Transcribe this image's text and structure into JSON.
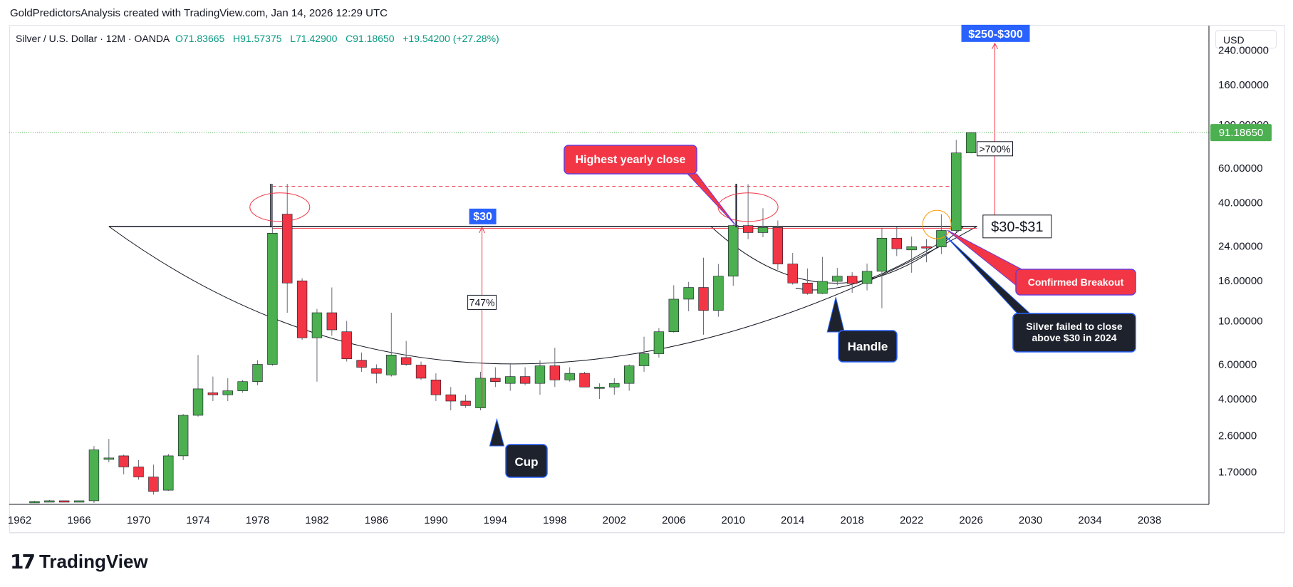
{
  "header": {
    "credit": "GoldPredictorsAnalysis created with TradingView.com, Jan 14, 2026 12:29 UTC"
  },
  "legend": {
    "symbol": "Silver / U.S. Dollar · 12M · OANDA",
    "open": "O71.83665",
    "high": "H91.57375",
    "low": "L71.42900",
    "close": "C91.18650",
    "change": "+19.54200 (+27.28%)"
  },
  "currency": "USD",
  "brand": {
    "mark": "17",
    "name": "TradingView"
  },
  "colors": {
    "up": "#4caf50",
    "down": "#f23645",
    "annotation_red": "#f23645",
    "annotation_dark": "#1e222d",
    "annotation_blue": "#2962ff"
  },
  "chart_data": {
    "type": "candlestick",
    "scale": "log",
    "ylim": [
      1.16,
      320
    ],
    "xlim": [
      1961.3,
      2042
    ],
    "y_ticks": [
      {
        "value": 240,
        "label": "240.00000"
      },
      {
        "value": 160,
        "label": "160.00000"
      },
      {
        "value": 100,
        "label": "100.00000"
      },
      {
        "value": 60,
        "label": "60.00000"
      },
      {
        "value": 40,
        "label": "40.00000"
      },
      {
        "value": 24,
        "label": "24.00000"
      },
      {
        "value": 16,
        "label": "16.00000"
      },
      {
        "value": 10,
        "label": "10.00000"
      },
      {
        "value": 6,
        "label": "6.00000"
      },
      {
        "value": 4,
        "label": "4.00000"
      },
      {
        "value": 2.6,
        "label": "2.60000"
      },
      {
        "value": 1.7,
        "label": "1.70000"
      }
    ],
    "x_ticks": [
      "1962",
      "1966",
      "1970",
      "1974",
      "1978",
      "1982",
      "1986",
      "1990",
      "1994",
      "1998",
      "2002",
      "2006",
      "2010",
      "2014",
      "2018",
      "2022",
      "2026",
      "2030",
      "2034",
      "2038"
    ],
    "last_price": {
      "value": 91.1865,
      "label": "91.18650"
    },
    "candles": [
      {
        "t": 1963,
        "o": 1.2,
        "h": 1.21,
        "l": 1.19,
        "c": 1.2
      },
      {
        "t": 1964,
        "o": 1.2,
        "h": 1.22,
        "l": 1.19,
        "c": 1.21
      },
      {
        "t": 1965,
        "o": 1.21,
        "h": 1.21,
        "l": 1.19,
        "c": 1.2
      },
      {
        "t": 1966,
        "o": 1.2,
        "h": 1.21,
        "l": 1.19,
        "c": 1.21
      },
      {
        "t": 1967,
        "o": 1.21,
        "h": 2.3,
        "l": 1.18,
        "c": 2.2
      },
      {
        "t": 1968,
        "o": 2.0,
        "h": 2.5,
        "l": 1.9,
        "c": 2.0
      },
      {
        "t": 1969,
        "o": 2.05,
        "h": 2.08,
        "l": 1.65,
        "c": 1.8
      },
      {
        "t": 1970,
        "o": 1.8,
        "h": 1.95,
        "l": 1.55,
        "c": 1.6
      },
      {
        "t": 1971,
        "o": 1.6,
        "h": 1.85,
        "l": 1.3,
        "c": 1.35
      },
      {
        "t": 1972,
        "o": 1.37,
        "h": 2.1,
        "l": 1.36,
        "c": 2.05
      },
      {
        "t": 1973,
        "o": 2.05,
        "h": 3.35,
        "l": 1.95,
        "c": 3.3
      },
      {
        "t": 1974,
        "o": 3.3,
        "h": 6.7,
        "l": 3.25,
        "c": 4.5
      },
      {
        "t": 1975,
        "o": 4.3,
        "h": 5.2,
        "l": 3.9,
        "c": 4.2
      },
      {
        "t": 1976,
        "o": 4.2,
        "h": 5.1,
        "l": 3.9,
        "c": 4.4
      },
      {
        "t": 1977,
        "o": 4.4,
        "h": 5.0,
        "l": 4.3,
        "c": 4.9
      },
      {
        "t": 1978,
        "o": 4.9,
        "h": 6.3,
        "l": 4.7,
        "c": 6.0
      },
      {
        "t": 1979,
        "o": 6.0,
        "h": 50.0,
        "l": 5.9,
        "c": 28.0
      },
      {
        "t": 1980,
        "o": 35.0,
        "h": 50.0,
        "l": 11.0,
        "c": 15.6
      },
      {
        "t": 1981,
        "o": 16.0,
        "h": 16.5,
        "l": 8.0,
        "c": 8.2
      },
      {
        "t": 1982,
        "o": 8.2,
        "h": 11.5,
        "l": 4.9,
        "c": 11.0
      },
      {
        "t": 1983,
        "o": 11.0,
        "h": 14.8,
        "l": 8.4,
        "c": 9.0
      },
      {
        "t": 1984,
        "o": 8.8,
        "h": 10.0,
        "l": 6.2,
        "c": 6.4
      },
      {
        "t": 1985,
        "o": 6.3,
        "h": 6.9,
        "l": 5.5,
        "c": 5.8
      },
      {
        "t": 1986,
        "o": 5.7,
        "h": 6.0,
        "l": 4.8,
        "c": 5.4
      },
      {
        "t": 1987,
        "o": 5.3,
        "h": 11.0,
        "l": 5.2,
        "c": 6.7
      },
      {
        "t": 1988,
        "o": 6.5,
        "h": 7.9,
        "l": 5.9,
        "c": 6.0
      },
      {
        "t": 1989,
        "o": 5.95,
        "h": 6.2,
        "l": 5.0,
        "c": 5.1
      },
      {
        "t": 1990,
        "o": 5.0,
        "h": 5.4,
        "l": 3.9,
        "c": 4.2
      },
      {
        "t": 1991,
        "o": 4.2,
        "h": 4.6,
        "l": 3.5,
        "c": 3.9
      },
      {
        "t": 1992,
        "o": 3.9,
        "h": 4.2,
        "l": 3.6,
        "c": 3.7
      },
      {
        "t": 1993,
        "o": 3.6,
        "h": 5.5,
        "l": 3.5,
        "c": 5.1
      },
      {
        "t": 1994,
        "o": 5.1,
        "h": 5.8,
        "l": 4.6,
        "c": 4.9
      },
      {
        "t": 1995,
        "o": 4.8,
        "h": 6.1,
        "l": 4.4,
        "c": 5.2
      },
      {
        "t": 1996,
        "o": 5.2,
        "h": 5.8,
        "l": 4.7,
        "c": 4.8
      },
      {
        "t": 1997,
        "o": 4.8,
        "h": 6.3,
        "l": 4.2,
        "c": 5.9
      },
      {
        "t": 1998,
        "o": 5.9,
        "h": 7.3,
        "l": 4.6,
        "c": 5.0
      },
      {
        "t": 1999,
        "o": 5.0,
        "h": 5.8,
        "l": 4.9,
        "c": 5.4
      },
      {
        "t": 2000,
        "o": 5.4,
        "h": 5.5,
        "l": 4.6,
        "c": 4.6
      },
      {
        "t": 2001,
        "o": 4.6,
        "h": 4.8,
        "l": 4.0,
        "c": 4.6
      },
      {
        "t": 2002,
        "o": 4.6,
        "h": 5.1,
        "l": 4.2,
        "c": 4.8
      },
      {
        "t": 2003,
        "o": 4.8,
        "h": 6.0,
        "l": 4.4,
        "c": 5.9
      },
      {
        "t": 2004,
        "o": 5.9,
        "h": 8.3,
        "l": 5.5,
        "c": 6.8
      },
      {
        "t": 2005,
        "o": 6.8,
        "h": 9.2,
        "l": 6.5,
        "c": 8.8
      },
      {
        "t": 2006,
        "o": 8.8,
        "h": 15.2,
        "l": 8.7,
        "c": 12.9
      },
      {
        "t": 2007,
        "o": 12.9,
        "h": 15.8,
        "l": 11.2,
        "c": 14.8
      },
      {
        "t": 2008,
        "o": 14.8,
        "h": 21.0,
        "l": 8.5,
        "c": 11.3
      },
      {
        "t": 2009,
        "o": 11.3,
        "h": 19.5,
        "l": 10.5,
        "c": 16.9
      },
      {
        "t": 2010,
        "o": 16.9,
        "h": 31.0,
        "l": 15.1,
        "c": 30.6
      },
      {
        "t": 2011,
        "o": 30.6,
        "h": 49.8,
        "l": 26.1,
        "c": 28.2
      },
      {
        "t": 2012,
        "o": 28.2,
        "h": 37.5,
        "l": 26.7,
        "c": 29.9
      },
      {
        "t": 2013,
        "o": 29.9,
        "h": 32.5,
        "l": 18.2,
        "c": 19.5
      },
      {
        "t": 2014,
        "o": 19.5,
        "h": 22.2,
        "l": 15.3,
        "c": 15.6
      },
      {
        "t": 2015,
        "o": 15.6,
        "h": 18.5,
        "l": 13.6,
        "c": 13.8
      },
      {
        "t": 2016,
        "o": 13.8,
        "h": 21.2,
        "l": 13.7,
        "c": 15.9
      },
      {
        "t": 2017,
        "o": 15.9,
        "h": 18.6,
        "l": 15.2,
        "c": 16.9
      },
      {
        "t": 2018,
        "o": 16.9,
        "h": 17.7,
        "l": 13.9,
        "c": 15.5
      },
      {
        "t": 2019,
        "o": 15.5,
        "h": 19.6,
        "l": 14.3,
        "c": 17.9
      },
      {
        "t": 2020,
        "o": 17.9,
        "h": 29.8,
        "l": 11.6,
        "c": 26.4
      },
      {
        "t": 2021,
        "o": 26.4,
        "h": 30.1,
        "l": 21.4,
        "c": 23.3
      },
      {
        "t": 2022,
        "o": 23.0,
        "h": 26.9,
        "l": 17.6,
        "c": 23.9
      },
      {
        "t": 2023,
        "o": 23.9,
        "h": 26.1,
        "l": 19.9,
        "c": 23.8
      },
      {
        "t": 2024,
        "o": 23.8,
        "h": 34.9,
        "l": 21.9,
        "c": 28.9
      },
      {
        "t": 2025,
        "o": 28.9,
        "h": 83.7,
        "l": 28.3,
        "c": 71.8
      },
      {
        "t": 2026,
        "o": 71.8,
        "h": 91.6,
        "l": 71.4,
        "c": 91.19
      }
    ],
    "annotations": {
      "label_30": "$30",
      "label_250_300": "$250-$300",
      "label_30_31": "$30-$31",
      "pct_747": "747%",
      "pct_700": ">700%",
      "highest_close": "Highest yearly close",
      "confirmed_breakout": "Confirmed Breakout",
      "failed_close": [
        "Silver failed to close",
        "above $30 in 2024"
      ],
      "cup": "Cup",
      "handle": "Handle"
    }
  }
}
